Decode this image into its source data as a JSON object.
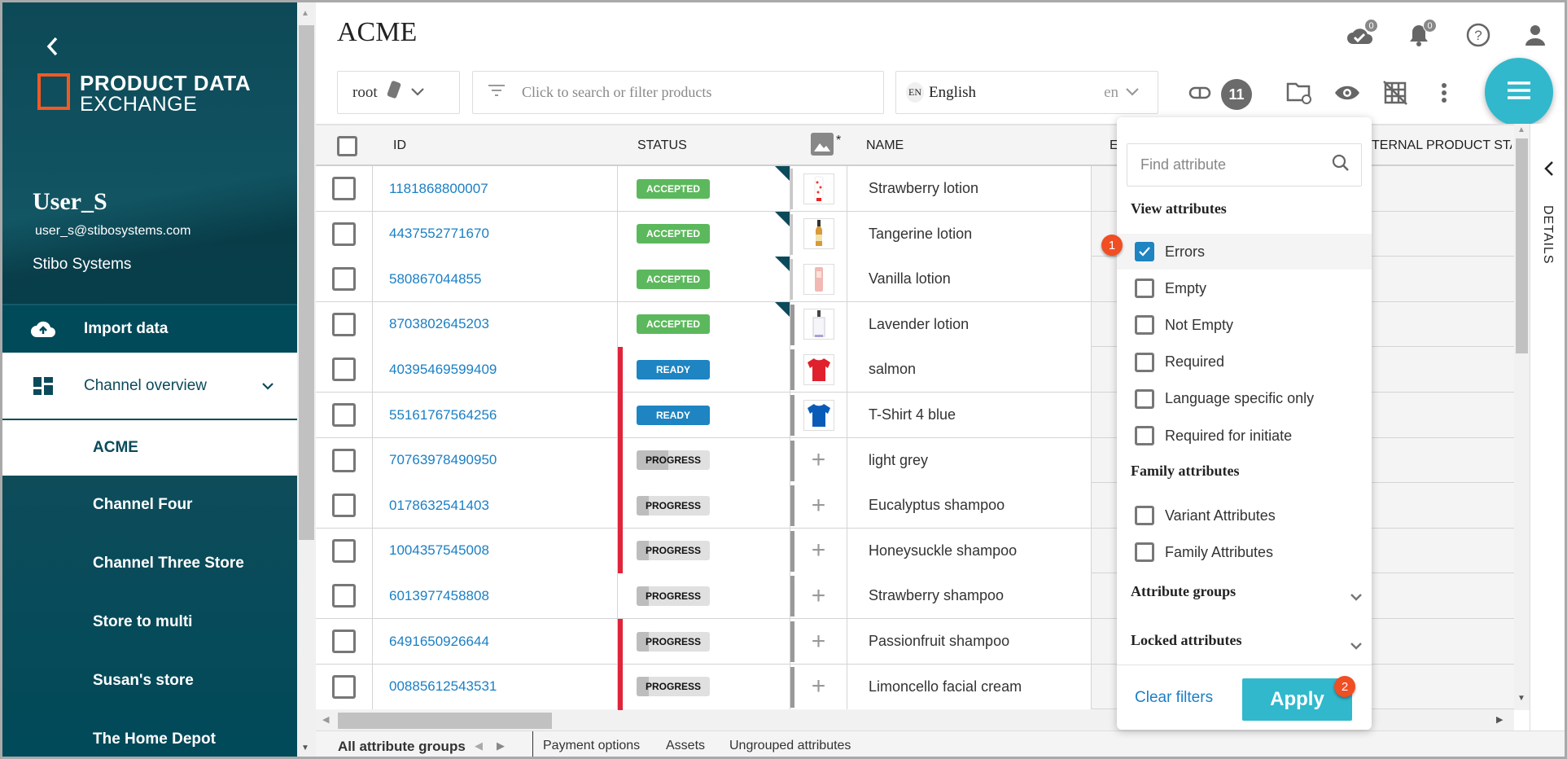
{
  "app": {
    "logo_line1": "PRODUCT DATA",
    "logo_line2": "EXCHANGE",
    "accent": "#31b8cc",
    "brand_dark": "#0b4a5a",
    "logo_color": "#f15a24"
  },
  "user": {
    "name": "User_S",
    "email": "user_s@stibosystems.com",
    "org": "Stibo Systems"
  },
  "sidebar": {
    "items": [
      {
        "label": "Import data",
        "icon": "cloud-upload-icon"
      },
      {
        "label": "Channel overview",
        "icon": "dashboard-icon",
        "expanded": true
      }
    ],
    "channels": [
      {
        "label": "ACME",
        "selected": true
      },
      {
        "label": "Channel Four"
      },
      {
        "label": "Channel Three Store"
      },
      {
        "label": "Store to multi"
      },
      {
        "label": "Susan's store"
      },
      {
        "label": "The Home Depot"
      }
    ]
  },
  "header": {
    "title": "ACME",
    "icons": [
      {
        "name": "cloud-check-icon",
        "count": "0"
      },
      {
        "name": "bell-icon",
        "count": "0"
      },
      {
        "name": "help-icon"
      },
      {
        "name": "user-icon"
      }
    ]
  },
  "toolbar": {
    "root_label": "root",
    "search_placeholder": "Click to search or filter products",
    "language_code_badge": "EN",
    "language": "English",
    "language_short": "en",
    "filter_count": "11"
  },
  "table": {
    "columns": [
      "ID",
      "STATUS",
      "*",
      "NAME",
      "E",
      "TERNAL PRODUCT STA"
    ],
    "rows": [
      {
        "id": "1181868800007",
        "status": "ACCEPTED",
        "name": "Strawberry lotion",
        "thumb": "lotion-red",
        "error": false,
        "flag": true
      },
      {
        "id": "4437552771670",
        "status": "ACCEPTED",
        "name": "Tangerine lotion",
        "thumb": "bottle-amber",
        "error": false,
        "flag": true
      },
      {
        "id": "580867044855",
        "status": "ACCEPTED",
        "name": "Vanilla lotion",
        "thumb": "lotion-pink",
        "error": false,
        "flag": true
      },
      {
        "id": "8703802645203",
        "status": "ACCEPTED",
        "name": "Lavender lotion",
        "thumb": "bottle-white",
        "error": false,
        "flag": true
      },
      {
        "id": "40395469599409",
        "status": "READY",
        "name": "salmon",
        "thumb": "tshirt-red",
        "error": true,
        "flag": false
      },
      {
        "id": "55161767564256",
        "status": "READY",
        "name": "T-Shirt 4 blue",
        "thumb": "tshirt-blue",
        "error": true,
        "flag": false
      },
      {
        "id": "70763978490950",
        "status": "PROGRESS",
        "progress": 0.43,
        "name": "light grey",
        "thumb": "add",
        "error": true,
        "flag": false
      },
      {
        "id": "0178632541403",
        "status": "PROGRESS",
        "progress": 0.17,
        "name": "Eucalyptus shampoo",
        "thumb": "add",
        "error": true,
        "flag": false
      },
      {
        "id": "1004357545008",
        "status": "PROGRESS",
        "progress": 0.17,
        "name": "Honeysuckle shampoo",
        "thumb": "add",
        "error": true,
        "flag": false
      },
      {
        "id": "6013977458808",
        "status": "PROGRESS",
        "progress": 0.17,
        "name": "Strawberry shampoo",
        "thumb": "add",
        "error": false,
        "flag": false
      },
      {
        "id": "6491650926644",
        "status": "PROGRESS",
        "progress": 0.17,
        "name": "Passionfruit shampoo",
        "thumb": "add",
        "error": true,
        "flag": false
      },
      {
        "id": "00885612543531",
        "status": "PROGRESS",
        "progress": 0.17,
        "name": "Limoncello facial cream",
        "thumb": "add",
        "error": true,
        "flag": false
      }
    ]
  },
  "details_label": "DETAILS",
  "bottom_tabs": {
    "active": "All attribute groups",
    "others": [
      "Payment options",
      "Assets",
      "Ungrouped attributes"
    ]
  },
  "filter_panel": {
    "search_placeholder": "Find attribute",
    "view_heading": "View attributes",
    "view_items": [
      {
        "label": "Errors",
        "checked": true
      },
      {
        "label": "Empty",
        "checked": false
      },
      {
        "label": "Not Empty",
        "checked": false
      },
      {
        "label": "Required",
        "checked": false
      },
      {
        "label": "Language specific only",
        "checked": false
      },
      {
        "label": "Required for initiate",
        "checked": false
      }
    ],
    "family_heading": "Family attributes",
    "family_items": [
      {
        "label": "Variant Attributes",
        "checked": false
      },
      {
        "label": "Family Attributes",
        "checked": false
      }
    ],
    "groups_heading": "Attribute groups",
    "locked_heading": "Locked attributes",
    "clear_label": "Clear filters",
    "apply_label": "Apply",
    "step1": "1",
    "step2": "2"
  }
}
